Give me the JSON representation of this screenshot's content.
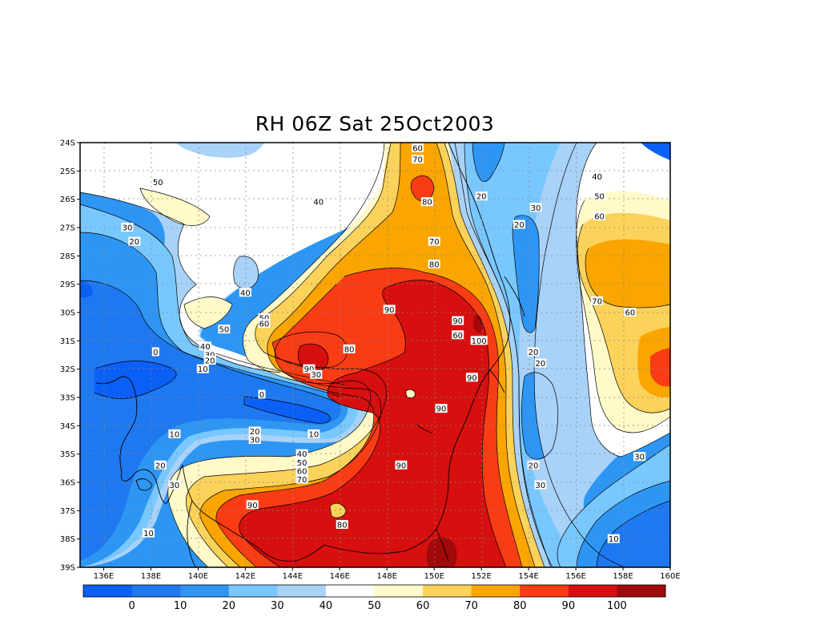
{
  "title": "RH 06Z Sat 25Oct2003",
  "lat_labels": [
    "24S",
    "25S",
    "26S",
    "27S",
    "28S",
    "29S",
    "30S",
    "31S",
    "32S",
    "33S",
    "34S",
    "35S",
    "36S",
    "37S",
    "38S",
    "39S"
  ],
  "lon_labels": [
    "136E",
    "138E",
    "140E",
    "142E",
    "144E",
    "146E",
    "148E",
    "150E",
    "152E",
    "154E",
    "156E",
    "158E",
    "160E"
  ],
  "colorbar": {
    "colors": [
      "#0a5ff5",
      "#1e78f0",
      "#2d96f5",
      "#78c8ff",
      "#a8d2f8",
      "#ffffff",
      "#fffac8",
      "#fbd25a",
      "#faa500",
      "#fa3c14",
      "#d70f0f",
      "#a00a0a"
    ],
    "labels": [
      "0",
      "10",
      "20",
      "30",
      "40",
      "50",
      "60",
      "70",
      "80",
      "90",
      "100"
    ]
  },
  "contour_labels": [
    {
      "text": "60",
      "lon": 149.3,
      "lat": -24.2
    },
    {
      "text": "70",
      "lon": 149.3,
      "lat": -24.6
    },
    {
      "text": "80",
      "lon": 149.7,
      "lat": -26.1
    },
    {
      "text": "40",
      "lon": 145.1,
      "lat": -26.1
    },
    {
      "text": "50",
      "lon": 138.3,
      "lat": -25.4
    },
    {
      "text": "30",
      "lon": 137.0,
      "lat": -27.0
    },
    {
      "text": "20",
      "lon": 137.3,
      "lat": -27.5
    },
    {
      "text": "40",
      "lon": 142.0,
      "lat": -29.3
    },
    {
      "text": "70",
      "lon": 150.0,
      "lat": -27.5
    },
    {
      "text": "80",
      "lon": 150.0,
      "lat": -28.3
    },
    {
      "text": "90",
      "lon": 148.1,
      "lat": -29.9
    },
    {
      "text": "90",
      "lon": 151.0,
      "lat": -30.3
    },
    {
      "text": "60",
      "lon": 151.0,
      "lat": -30.8
    },
    {
      "text": "100",
      "lon": 151.9,
      "lat": -31.0
    },
    {
      "text": "80",
      "lon": 146.4,
      "lat": -31.3
    },
    {
      "text": "90",
      "lon": 151.6,
      "lat": -32.3
    },
    {
      "text": "20",
      "lon": 152.0,
      "lat": -25.9
    },
    {
      "text": "30",
      "lon": 154.3,
      "lat": -26.3
    },
    {
      "text": "20",
      "lon": 153.6,
      "lat": -26.9
    },
    {
      "text": "40",
      "lon": 156.9,
      "lat": -25.2
    },
    {
      "text": "50",
      "lon": 157.0,
      "lat": -25.9
    },
    {
      "text": "60",
      "lon": 157.0,
      "lat": -26.6
    },
    {
      "text": "70",
      "lon": 156.9,
      "lat": -29.6
    },
    {
      "text": "60",
      "lon": 158.3,
      "lat": -30.0
    },
    {
      "text": "20",
      "lon": 154.2,
      "lat": -31.4
    },
    {
      "text": "20",
      "lon": 154.5,
      "lat": -31.8
    },
    {
      "text": "0",
      "lon": 138.2,
      "lat": -31.4
    },
    {
      "text": "40",
      "lon": 140.3,
      "lat": -31.2
    },
    {
      "text": "30",
      "lon": 140.5,
      "lat": -31.5
    },
    {
      "text": "20",
      "lon": 140.5,
      "lat": -31.7
    },
    {
      "text": "10",
      "lon": 140.2,
      "lat": -32.0
    },
    {
      "text": "50",
      "lon": 141.1,
      "lat": -30.6
    },
    {
      "text": "50",
      "lon": 142.8,
      "lat": -30.2
    },
    {
      "text": "60",
      "lon": 142.8,
      "lat": -30.4
    },
    {
      "text": "90",
      "lon": 144.7,
      "lat": -32.0
    },
    {
      "text": "30",
      "lon": 145.0,
      "lat": -32.2
    },
    {
      "text": "0",
      "lon": 142.7,
      "lat": -32.9
    },
    {
      "text": "90",
      "lon": 150.3,
      "lat": -33.4
    },
    {
      "text": "10",
      "lon": 139.0,
      "lat": -34.3
    },
    {
      "text": "20",
      "lon": 142.4,
      "lat": -34.2
    },
    {
      "text": "30",
      "lon": 142.4,
      "lat": -34.5
    },
    {
      "text": "10",
      "lon": 144.9,
      "lat": -34.3
    },
    {
      "text": "40",
      "lon": 144.4,
      "lat": -35.0
    },
    {
      "text": "50",
      "lon": 144.4,
      "lat": -35.3
    },
    {
      "text": "60",
      "lon": 144.4,
      "lat": -35.6
    },
    {
      "text": "70",
      "lon": 144.4,
      "lat": -35.9
    },
    {
      "text": "20",
      "lon": 138.4,
      "lat": -35.4
    },
    {
      "text": "30",
      "lon": 139.0,
      "lat": -36.1
    },
    {
      "text": "90",
      "lon": 148.6,
      "lat": -35.4
    },
    {
      "text": "20",
      "lon": 154.2,
      "lat": -35.4
    },
    {
      "text": "30",
      "lon": 154.5,
      "lat": -36.1
    },
    {
      "text": "30",
      "lon": 158.7,
      "lat": -35.1
    },
    {
      "text": "90",
      "lon": 142.3,
      "lat": -36.8
    },
    {
      "text": "80",
      "lon": 146.1,
      "lat": -37.5
    },
    {
      "text": "10",
      "lon": 137.9,
      "lat": -37.8
    },
    {
      "text": "10",
      "lon": 157.6,
      "lat": -38.0
    }
  ]
}
